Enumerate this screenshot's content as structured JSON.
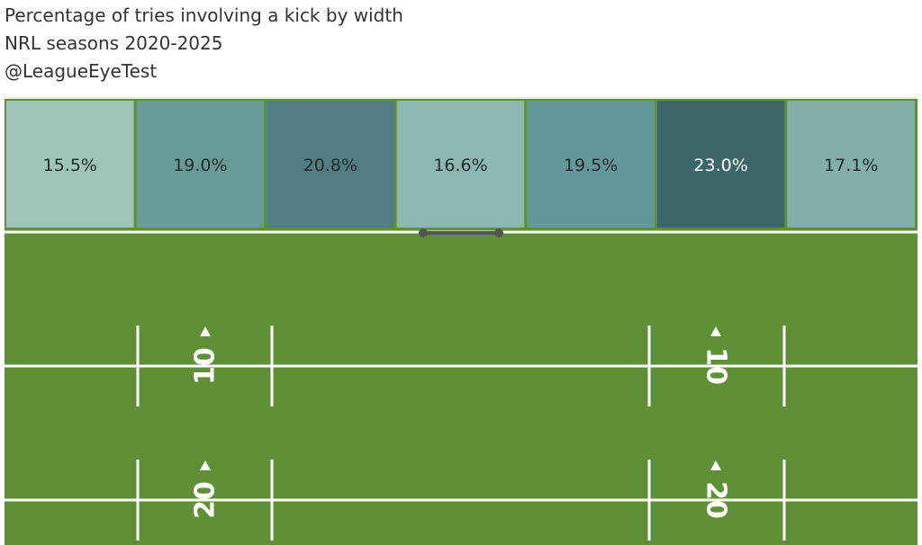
{
  "header": {
    "title": "Percentage of tries involving a kick by width",
    "subtitle": "NRL seasons 2020-2025",
    "handle": "@LeagueEyeTest"
  },
  "chart_data": {
    "type": "heatmap",
    "title": "Percentage of tries involving a kick by width",
    "subtitle": "NRL seasons 2020-2025",
    "unit": "%",
    "values": [
      15.5,
      19.0,
      20.8,
      16.6,
      19.5,
      23.0,
      17.1
    ],
    "labels": [
      "15.5%",
      "19.0%",
      "20.8%",
      "16.6%",
      "19.5%",
      "23.0%",
      "17.1%"
    ],
    "colors": [
      "#9fc5b8",
      "#689b98",
      "#517e83",
      "#8db8b1",
      "#64979a",
      "#3b666a",
      "#82afa9"
    ],
    "grid": false
  },
  "field": {
    "grass_color": "#5f8f37",
    "line_color": "#ffffff",
    "yard_markers": [
      {
        "left": "10",
        "right": "10"
      },
      {
        "left": "20",
        "right": "20"
      }
    ]
  }
}
